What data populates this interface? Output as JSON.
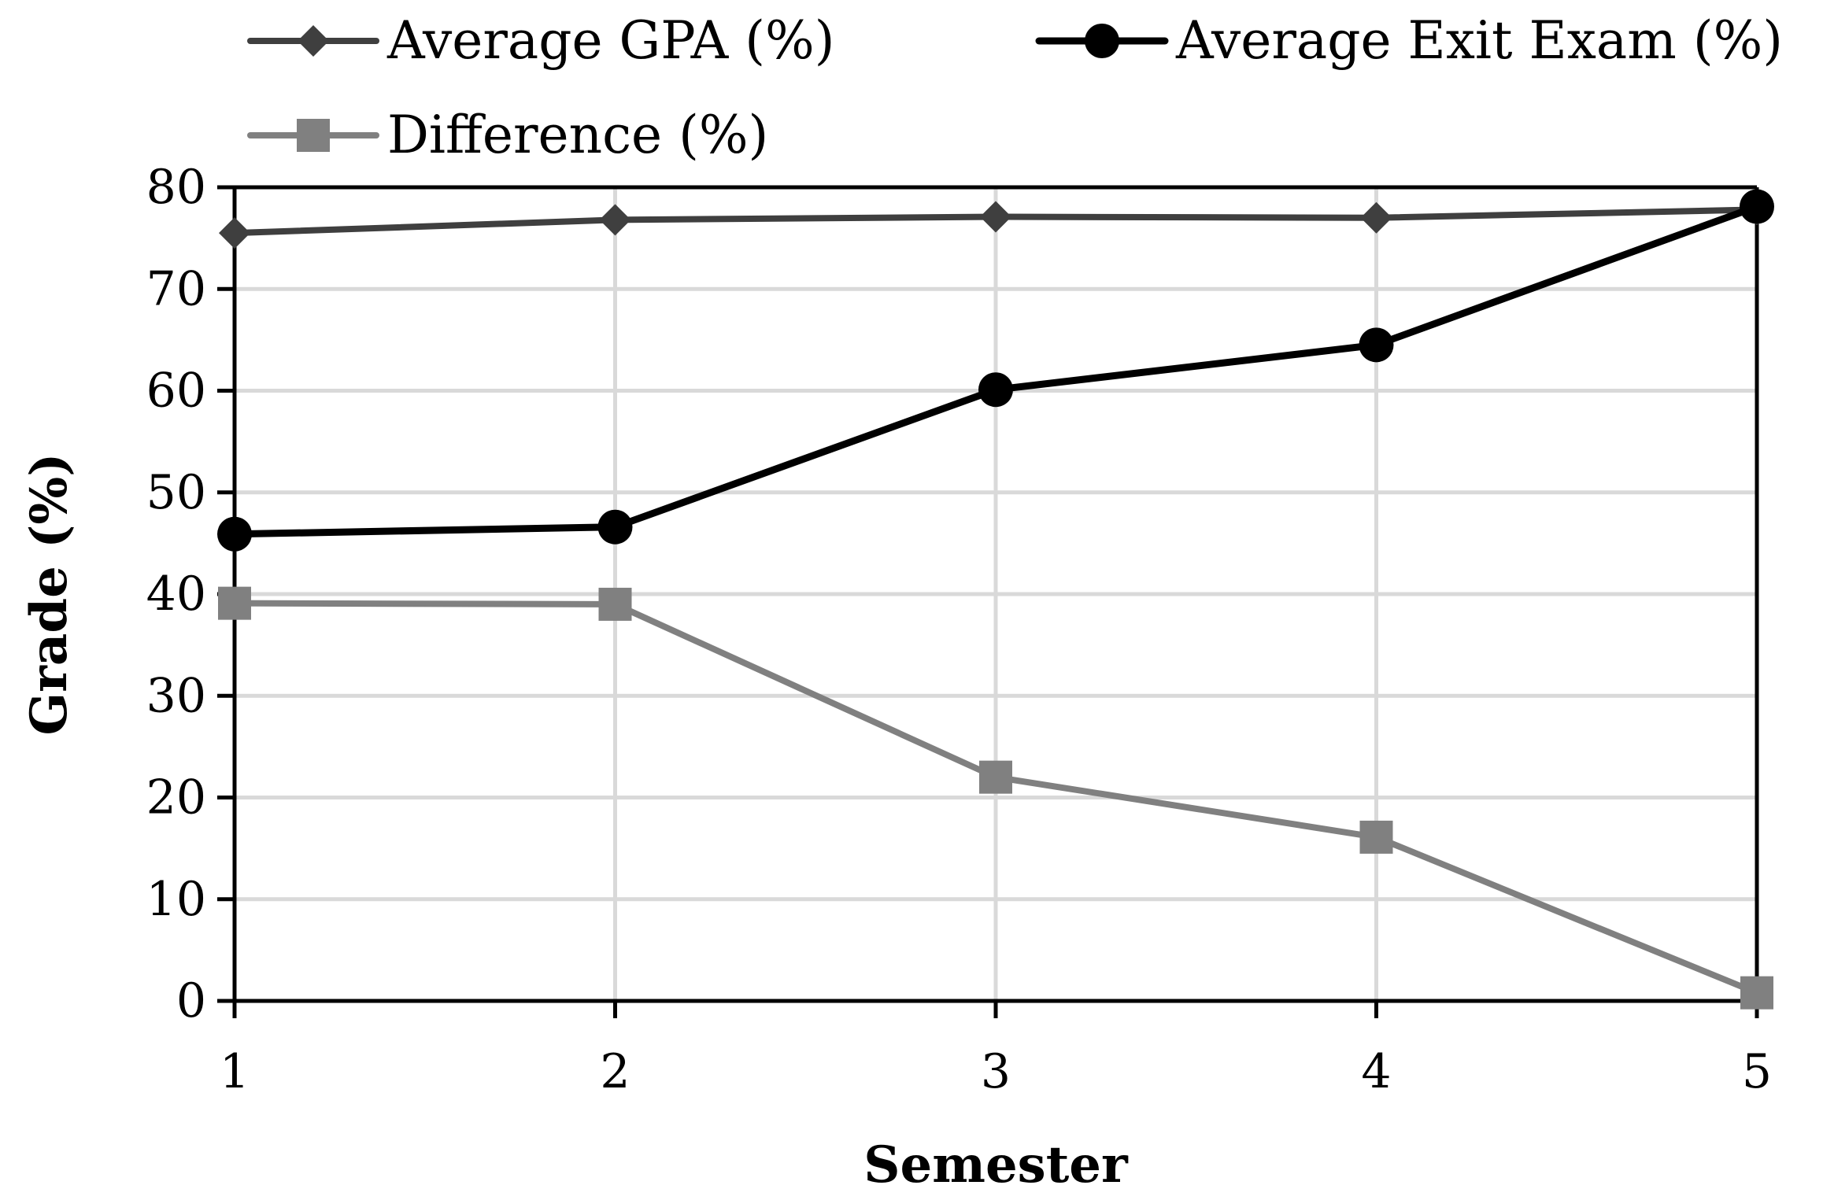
{
  "chart_data": {
    "type": "line",
    "title": "",
    "xlabel": "Semester",
    "ylabel": "Grade (%)",
    "x": [
      1,
      2,
      3,
      4,
      5
    ],
    "xlim": [
      1,
      5
    ],
    "ylim": [
      0,
      80
    ],
    "yticks": [
      0,
      10,
      20,
      30,
      40,
      50,
      60,
      70,
      80
    ],
    "xticks": [
      1,
      2,
      3,
      4,
      5
    ],
    "grid": true,
    "legend_position": "top",
    "series": [
      {
        "name": "Average GPA (%)",
        "values": [
          75.5,
          76.8,
          77.1,
          77.0,
          77.8
        ],
        "color": "#3f3f3f",
        "marker": "diamond"
      },
      {
        "name": "Average Exit Exam (%)",
        "values": [
          45.9,
          46.6,
          60.1,
          64.5,
          78.1
        ],
        "color": "#000000",
        "marker": "circle"
      },
      {
        "name": "Difference (%)",
        "values": [
          39.1,
          39.0,
          22.0,
          16.1,
          0.8
        ],
        "color": "#808080",
        "marker": "square"
      }
    ]
  }
}
